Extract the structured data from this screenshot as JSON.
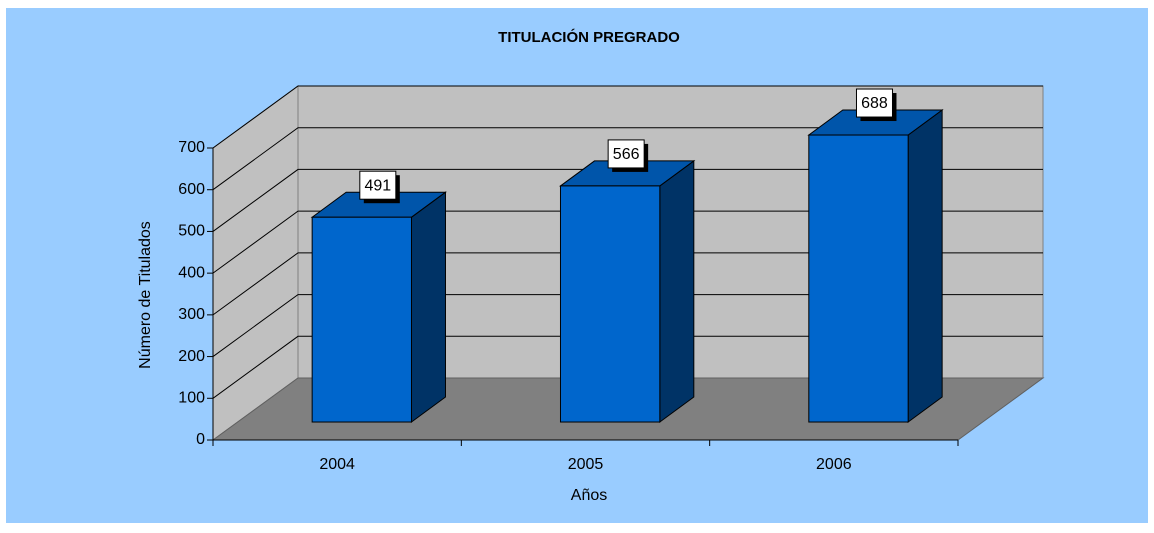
{
  "chart_data": {
    "type": "bar3d",
    "title": "TITULACIÓN PREGRADO",
    "x_label": "Años",
    "y_label": "Número de Titulados",
    "categories": [
      "2004",
      "2005",
      "2006"
    ],
    "values": [
      491,
      566,
      688
    ],
    "color": "#0066cc",
    "ylim": [
      0,
      700
    ],
    "yticks": [
      0,
      100,
      200,
      300,
      400,
      500,
      600,
      700
    ],
    "grid": true,
    "data_labels": true
  }
}
